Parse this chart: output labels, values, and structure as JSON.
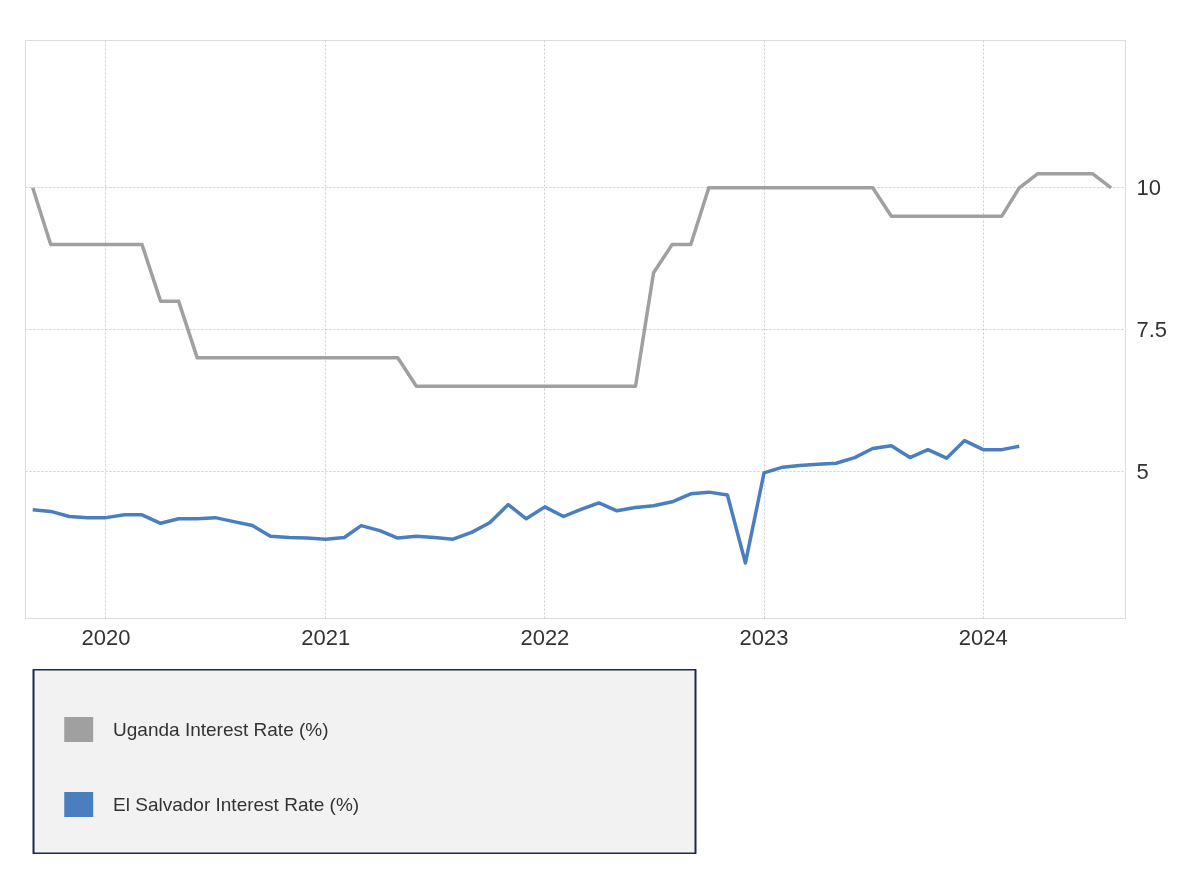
{
  "chart_data": {
    "type": "line",
    "x": [
      "2019-09",
      "2019-10",
      "2019-11",
      "2019-12",
      "2020-01",
      "2020-02",
      "2020-03",
      "2020-04",
      "2020-05",
      "2020-06",
      "2020-07",
      "2020-08",
      "2020-09",
      "2020-10",
      "2020-11",
      "2020-12",
      "2021-01",
      "2021-02",
      "2021-03",
      "2021-04",
      "2021-05",
      "2021-06",
      "2021-07",
      "2021-08",
      "2021-09",
      "2021-10",
      "2021-11",
      "2021-12",
      "2022-01",
      "2022-02",
      "2022-03",
      "2022-04",
      "2022-05",
      "2022-06",
      "2022-07",
      "2022-08",
      "2022-09",
      "2022-10",
      "2022-11",
      "2022-12",
      "2023-01",
      "2023-02",
      "2023-03",
      "2023-04",
      "2023-05",
      "2023-06",
      "2023-07",
      "2023-08",
      "2023-09",
      "2023-10",
      "2023-11",
      "2023-12",
      "2024-01",
      "2024-02",
      "2024-03",
      "2024-04",
      "2024-05",
      "2024-06",
      "2024-07",
      "2024-08"
    ],
    "series": [
      {
        "name": "Uganda Interest Rate (%)",
        "color": "#a0a0a0",
        "values": [
          10,
          9,
          9,
          9,
          9,
          9,
          9,
          8,
          8,
          7,
          7,
          7,
          7,
          7,
          7,
          7,
          7,
          7,
          7,
          7,
          7,
          6.5,
          6.5,
          6.5,
          6.5,
          6.5,
          6.5,
          6.5,
          6.5,
          6.5,
          6.5,
          6.5,
          6.5,
          6.5,
          8.5,
          9,
          9,
          10,
          10,
          10,
          10,
          10,
          10,
          10,
          10,
          10,
          10,
          9.5,
          9.5,
          9.5,
          9.5,
          9.5,
          9.5,
          9.5,
          10,
          10.25,
          10.25,
          10.25,
          10.25,
          10
        ]
      },
      {
        "name": "El Salvador Interest Rate (%)",
        "color": "#4a7ebf",
        "values": [
          4.32,
          4.29,
          4.2,
          4.18,
          4.18,
          4.23,
          4.23,
          4.08,
          4.16,
          4.16,
          4.18,
          4.11,
          4.04,
          3.85,
          3.83,
          3.82,
          3.8,
          3.83,
          4.04,
          3.95,
          3.82,
          3.85,
          3.83,
          3.8,
          3.92,
          4.09,
          4.41,
          4.16,
          4.37,
          4.2,
          4.32,
          4.44,
          4.3,
          4.36,
          4.39,
          4.46,
          4.6,
          4.63,
          4.58,
          3.38,
          4.97,
          5.07,
          5.1,
          5.12,
          5.14,
          5.24,
          5.4,
          5.45,
          5.24,
          5.38,
          5.23,
          5.54,
          5.38,
          5.38,
          5.44,
          null,
          null,
          null,
          null,
          null
        ]
      }
    ],
    "xlim": [
      "2019-08-20",
      "2024-08-25"
    ],
    "xticks": [
      "2020",
      "2021",
      "2022",
      "2023",
      "2024"
    ],
    "ylim": [
      2.4,
      12.6
    ],
    "yticks": [
      5,
      7.5,
      10
    ],
    "grid": true,
    "legend": "bottom"
  }
}
